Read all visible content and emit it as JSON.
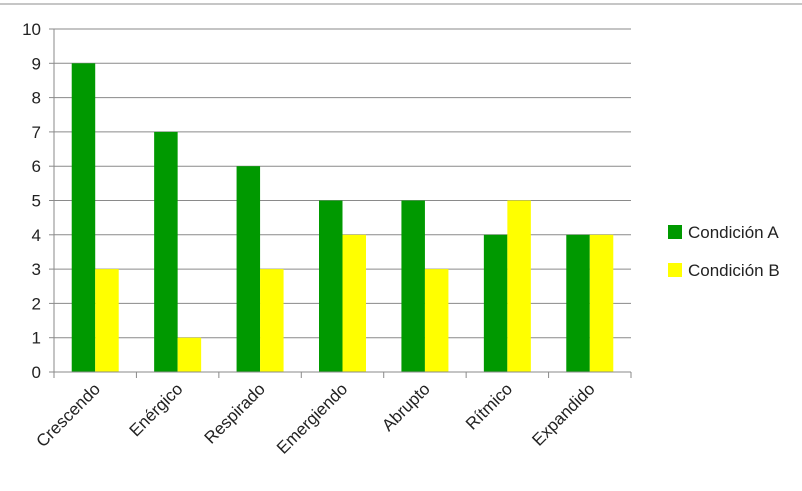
{
  "chart_data": {
    "type": "bar",
    "title": "",
    "xlabel": "",
    "ylabel": "",
    "categories": [
      "Crescendo",
      "Enérgico",
      "Respirado",
      "Emergiendo",
      "Abrupto",
      "Rítmico",
      "Expandido"
    ],
    "series": [
      {
        "name": "Condición A",
        "color": "#009900",
        "values": [
          9,
          7,
          6,
          5,
          5,
          4,
          4
        ]
      },
      {
        "name": "Condición B",
        "color": "#ffff00",
        "values": [
          3,
          1,
          3,
          4,
          3,
          5,
          4
        ]
      }
    ],
    "ylim": [
      0,
      10
    ],
    "yticks": [
      "0",
      "1",
      "2",
      "3",
      "4",
      "5",
      "6",
      "7",
      "8",
      "9",
      "10"
    ],
    "grid": true,
    "legend_position": "right"
  }
}
